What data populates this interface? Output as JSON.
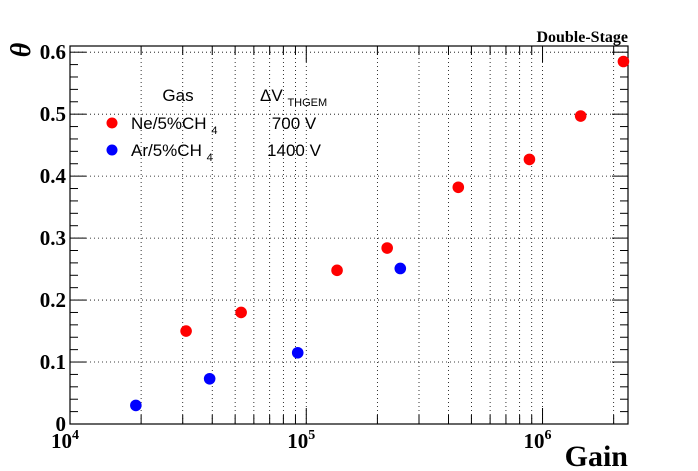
{
  "chart_data": {
    "type": "scatter",
    "title": "Double-Stage",
    "xlabel": "Gain",
    "ylabel": "θ",
    "xscale": "log",
    "xlim": [
      10000,
      2300000
    ],
    "ylim": [
      0,
      0.61
    ],
    "grid": true,
    "x_tick_labels": [
      {
        "value": 10000,
        "base": "10",
        "exp": "4"
      },
      {
        "value": 100000,
        "base": "10",
        "exp": "5"
      },
      {
        "value": 1000000,
        "base": "10",
        "exp": "6"
      }
    ],
    "y_ticks": [
      0,
      0.1,
      0.2,
      0.3,
      0.4,
      0.5,
      0.6
    ],
    "y_tick_labels": [
      "0",
      "0.1",
      "0.2",
      "0.3",
      "0.4",
      "0.5",
      "0.6"
    ],
    "legend": {
      "position": "top-left",
      "col_gas": "Gas",
      "col_dv_main": "ΔV",
      "col_dv_sub": "THGEM",
      "entries": [
        {
          "gas_main": "Ne/5%CH",
          "gas_sub": "4",
          "dv": "700 V",
          "color": "#ff0000"
        },
        {
          "gas_main": "Ar/5%CH",
          "gas_sub": "4",
          "dv": "1400 V",
          "color": "#0000ff"
        }
      ]
    },
    "series": [
      {
        "name": "Ne/5%CH4",
        "color": "#ff0000",
        "x": [
          31000,
          53000,
          135000,
          220000,
          440000,
          880000,
          1450000,
          2200000
        ],
        "y": [
          0.15,
          0.18,
          0.248,
          0.284,
          0.382,
          0.427,
          0.497,
          0.585
        ]
      },
      {
        "name": "Ar/5%CH4",
        "color": "#0000ff",
        "x": [
          19000,
          39000,
          92000,
          250000
        ],
        "y": [
          0.03,
          0.073,
          0.115,
          0.251
        ]
      }
    ]
  }
}
